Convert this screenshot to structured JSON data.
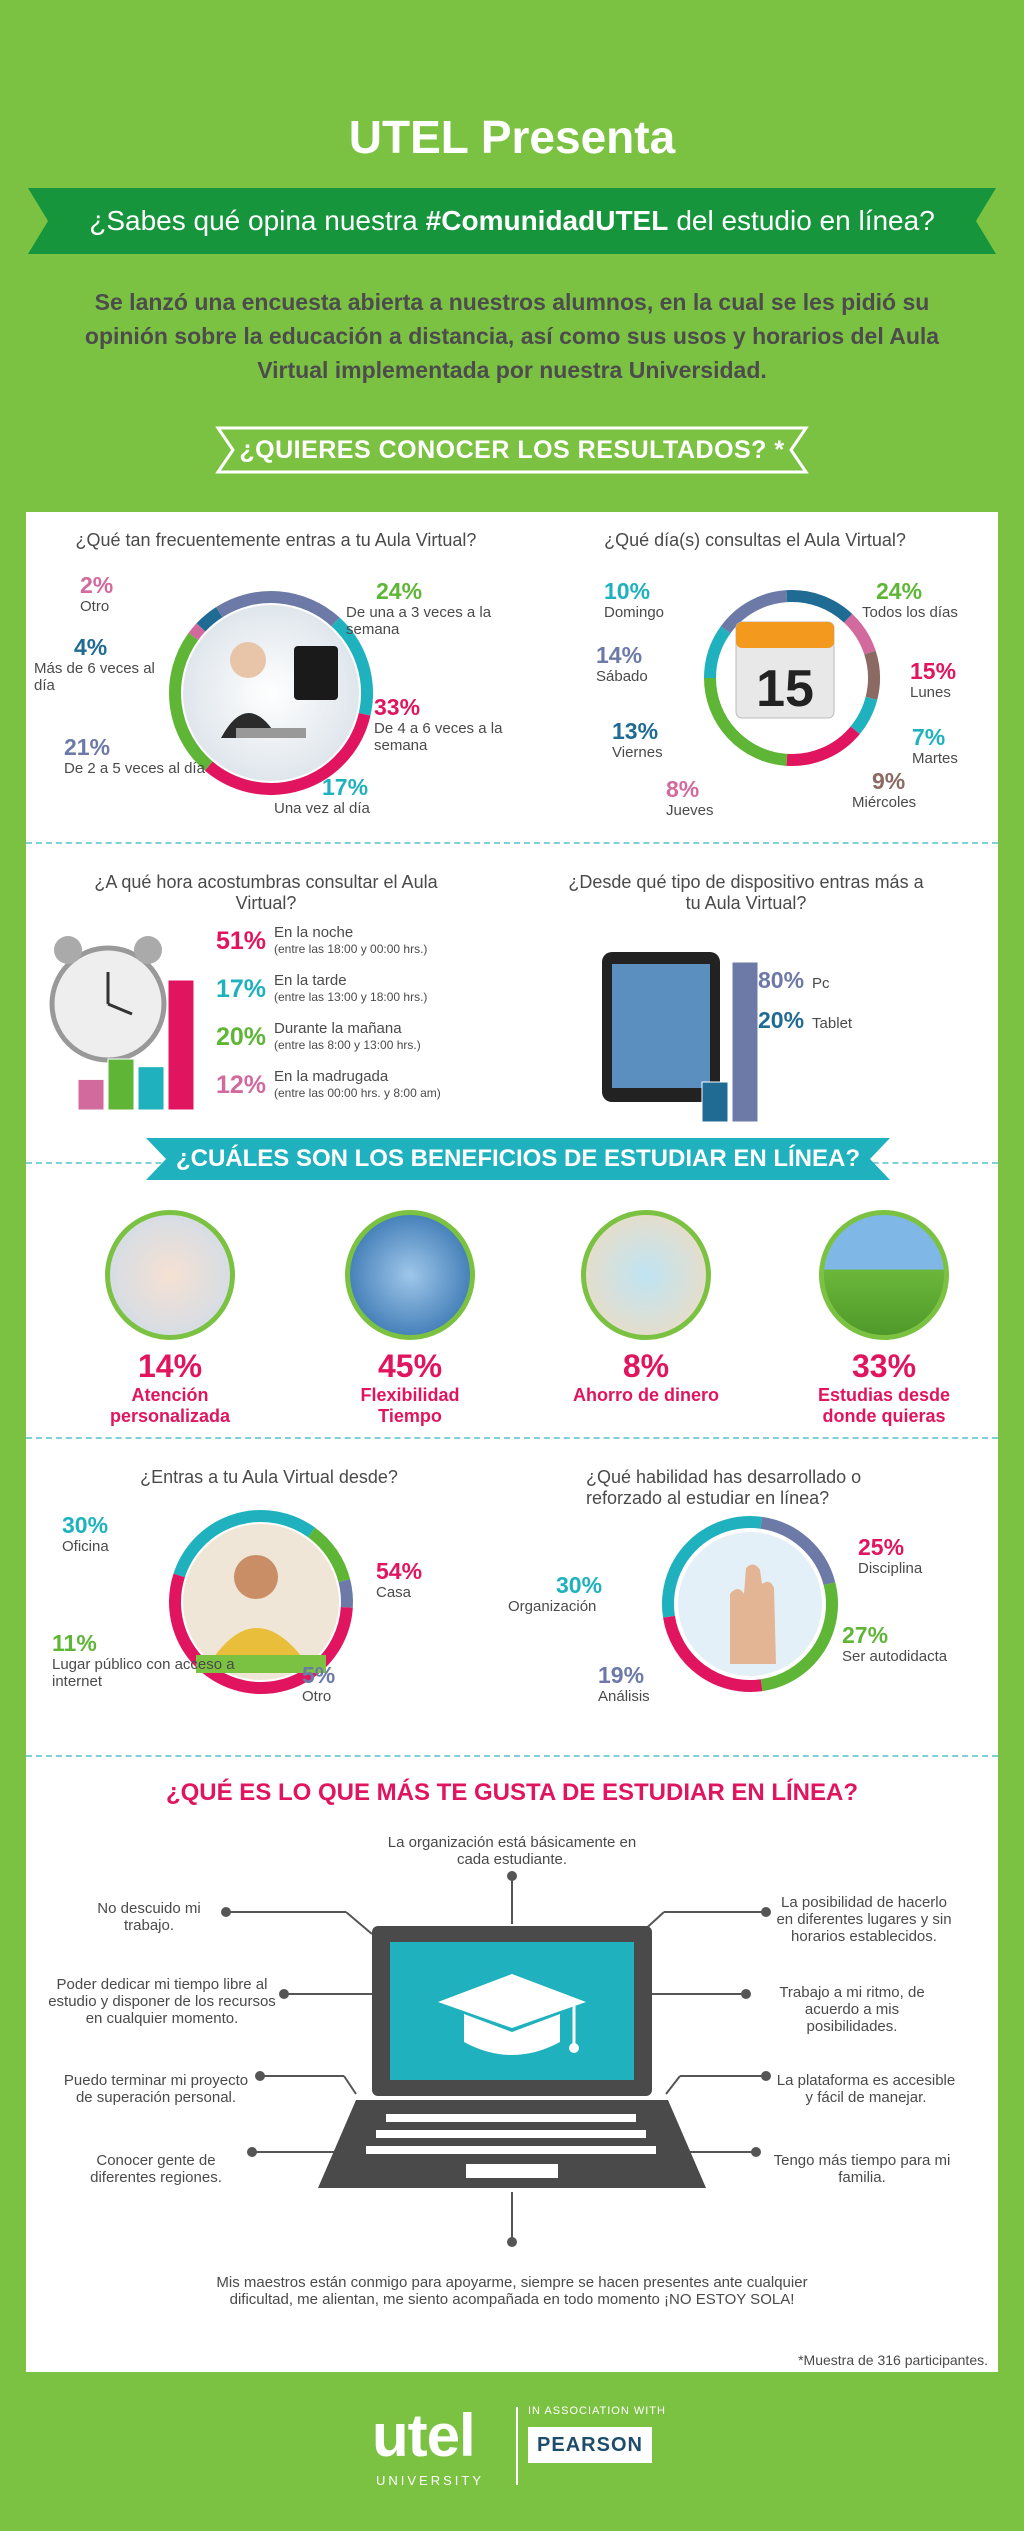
{
  "header": {
    "title": "UTEL Presenta",
    "ribbon_pre": "¿Sabes qué opina nuestra",
    "ribbon_bold": "#ComunidadUTEL",
    "ribbon_post": "del estudio en línea?",
    "intro": "Se lanzó una encuesta abierta a nuestros alumnos, en la cual se les pidió su opinión sobre la educación a distancia, así como sus usos y horarios del Aula Virtual implementada por nuestra Universidad.",
    "banner": "¿QUIERES CONOCER LOS RESULTADOS? *"
  },
  "frequency": {
    "question": "¿Qué tan frecuentemente entras a tu Aula Virtual?",
    "items": [
      {
        "pct": "2%",
        "label": "Otro",
        "value": 2,
        "color": "#d26a9d"
      },
      {
        "pct": "4%",
        "label": "Más de 6 veces al día",
        "value": 4,
        "color": "#1f6b94"
      },
      {
        "pct": "21%",
        "label": "De 2 a 5 veces al día",
        "value": 21,
        "color": "#6d7aa8"
      },
      {
        "pct": "17%",
        "label": "Una vez al día",
        "value": 17,
        "color": "#1fb2be"
      },
      {
        "pct": "33%",
        "label": "De 4 a 6 veces a la semana",
        "value": 33,
        "color": "#e1155f"
      },
      {
        "pct": "24%",
        "label": "De una a 3 veces a la semana",
        "value": 24,
        "color": "#5fb536"
      }
    ]
  },
  "days": {
    "question": "¿Qué día(s) consultas el Aula Virtual?",
    "calendar_number": "15",
    "items": [
      {
        "pct": "10%",
        "label": "Domingo",
        "value": 10,
        "color": "#1fb2be"
      },
      {
        "pct": "14%",
        "label": "Sábado",
        "value": 14,
        "color": "#6d7aa8"
      },
      {
        "pct": "13%",
        "label": "Viernes",
        "value": 13,
        "color": "#1f6b94"
      },
      {
        "pct": "8%",
        "label": "Jueves",
        "value": 8,
        "color": "#d26a9d"
      },
      {
        "pct": "9%",
        "label": "Miércoles",
        "value": 9,
        "color": "#8a6a62"
      },
      {
        "pct": "7%",
        "label": "Martes",
        "value": 7,
        "color": "#1fb2be"
      },
      {
        "pct": "15%",
        "label": "Lunes",
        "value": 15,
        "color": "#e1155f"
      },
      {
        "pct": "24%",
        "label": "Todos los días",
        "value": 24,
        "color": "#5fb536"
      }
    ]
  },
  "time": {
    "question": "¿A qué hora acostumbras consultar el Aula Virtual?",
    "items": [
      {
        "pct": "51%",
        "label": "En la noche",
        "detail": "(entre las 18:00 y 00:00 hrs.)",
        "color": "#e1155f"
      },
      {
        "pct": "17%",
        "label": "En la tarde",
        "detail": "(entre las 13:00 y 18:00 hrs.)",
        "color": "#1fb2be"
      },
      {
        "pct": "20%",
        "label": "Durante la mañana",
        "detail": "(entre las 8:00 y 13:00 hrs.)",
        "color": "#5fb536"
      },
      {
        "pct": "12%",
        "label": "En la madrugada",
        "detail": "(entre las 00:00 hrs. y 8:00 am)",
        "color": "#d26a9d"
      }
    ]
  },
  "device": {
    "question": "¿Desde qué tipo de dispositivo entras más a tu Aula Virtual?",
    "items": [
      {
        "pct": "80%",
        "label": "Pc",
        "value": 80,
        "color": "#6d7aa8"
      },
      {
        "pct": "20%",
        "label": "Tablet",
        "value": 20,
        "color": "#1f6b94"
      }
    ]
  },
  "benefits": {
    "title": "¿CUÁLES SON LOS BENEFICIOS DE ESTUDIAR EN LÍNEA?",
    "items": [
      {
        "pct": "14%",
        "label1": "Atención",
        "label2": "personalizada"
      },
      {
        "pct": "45%",
        "label1": "Flexibilidad",
        "label2": "Tiempo"
      },
      {
        "pct": "8%",
        "label1": "Ahorro de dinero",
        "label2": ""
      },
      {
        "pct": "33%",
        "label1": "Estudias desde",
        "label2": "donde quieras"
      }
    ]
  },
  "place": {
    "question": "¿Entras a tu Aula Virtual desde?",
    "items": [
      {
        "pct": "30%",
        "label": "Oficina",
        "value": 30,
        "color": "#1fb2be"
      },
      {
        "pct": "11%",
        "label": "Lugar público con acceso a internet",
        "value": 11,
        "color": "#5fb536"
      },
      {
        "pct": "5%",
        "label": "Otro",
        "value": 5,
        "color": "#6d7aa8"
      },
      {
        "pct": "54%",
        "label": "Casa",
        "value": 54,
        "color": "#e1155f"
      }
    ]
  },
  "skill": {
    "question": "¿Qué habilidad has desarrollado o reforzado al estudiar en línea?",
    "items": [
      {
        "pct": "30%",
        "label": "Organización",
        "value": 30,
        "color": "#1fb2be"
      },
      {
        "pct": "19%",
        "label": "Análisis",
        "value": 19,
        "color": "#6d7aa8"
      },
      {
        "pct": "27%",
        "label": "Ser autodidacta",
        "value": 27,
        "color": "#5fb536"
      },
      {
        "pct": "25%",
        "label": "Disciplina",
        "value": 25,
        "color": "#e1155f"
      }
    ]
  },
  "likes": {
    "title": "¿QUÉ ES LO QUE MÁS TE GUSTA DE ESTUDIAR EN LÍNEA?",
    "top": "La organización está básicamente en cada estudiante.",
    "left": [
      "No descuido mi trabajo.",
      "Poder dedicar mi tiempo libre al estudio y disponer de los recursos en cualquier momento.",
      "Puedo terminar mi proyecto de superación personal.",
      "Conocer gente de diferentes regiones."
    ],
    "right": [
      "La posibilidad de hacerlo en diferentes lugares y sin horarios establecidos.",
      "Trabajo a mi ritmo, de acuerdo a mis posibilidades.",
      "La plataforma es accesible y fácil de manejar.",
      "Tengo más tiempo para mi familia."
    ],
    "bottom": "Mis maestros están conmigo para apoyarme, siempre se hacen presentes ante cualquier dificultad, me alientan, me siento acompañada en todo momento ¡NO ESTOY SOLA!"
  },
  "footer": {
    "note": "*Muestra de 316 participantes.",
    "logo_text": "utel",
    "logo_sub": "UNIVERSITY",
    "assoc": "IN ASSOCIATION WITH",
    "partner": "PEARSON"
  },
  "colors": {
    "green": "#7cc242",
    "dark_green": "#1e9a3f",
    "pink": "#e1155f",
    "teal": "#1fb2be"
  }
}
